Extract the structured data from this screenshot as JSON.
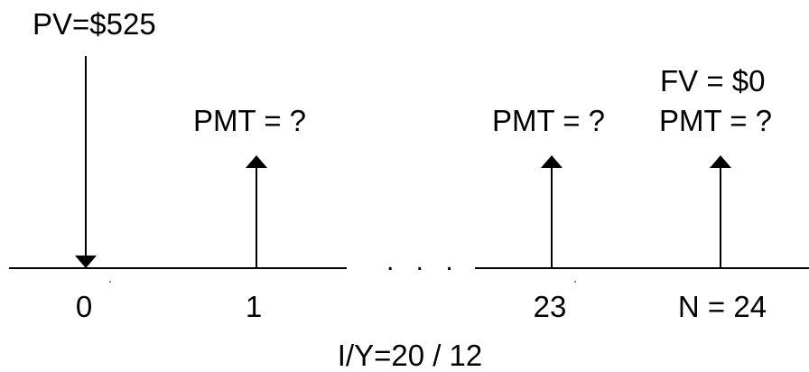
{
  "present_value": "PV=$525",
  "future_value": "FV = $0",
  "periods": [
    {
      "label": "0",
      "payment": ""
    },
    {
      "label": "1",
      "payment": "PMT = ?"
    },
    {
      "label": "23",
      "payment": "PMT = ?"
    },
    {
      "label": "N = 24",
      "payment": "PMT = ?"
    }
  ],
  "ellipsis": ". . .",
  "interest_rate": "I/Y=20 / 12",
  "colors": {
    "ink": "#000000",
    "background": "#ffffff"
  }
}
